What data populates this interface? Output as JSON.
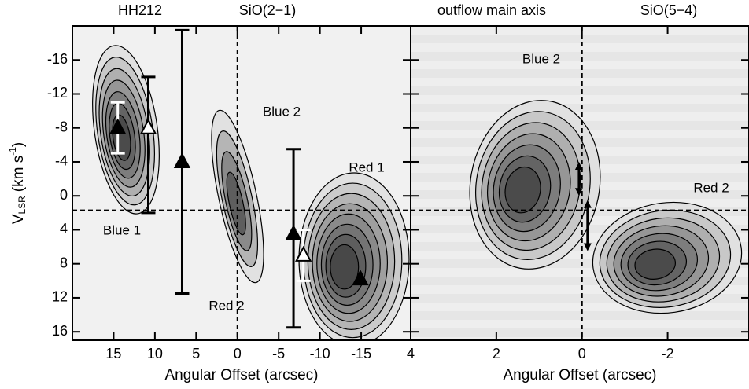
{
  "chart_data": [
    {
      "type": "pv-contour",
      "labels": [
        "HH212",
        "SiO(2−1)"
      ],
      "xlabel": "Angular Offset (arcsec)",
      "ylabel": {
        "main": "V",
        "sub": "LSR",
        "unit": "(km s",
        "sup": "-1",
        "end": ")"
      },
      "xlim": [
        20,
        -21
      ],
      "ylim": [
        -20,
        17
      ],
      "xticks": [
        15,
        10,
        5,
        0,
        -5,
        -10,
        -15
      ],
      "yticks": [
        -16,
        -12,
        -8,
        -4,
        0,
        4,
        8,
        12,
        16
      ],
      "show_ytick_labels": true,
      "vline": 0,
      "hline": 1.7,
      "annotations": [
        "Blue 1",
        "Blue 2",
        "Red 1",
        "Red 2"
      ],
      "markers": [
        {
          "x": 14.5,
          "y": -8,
          "fill": "black",
          "bar": [
            -11,
            -5
          ],
          "bar_color": "white"
        },
        {
          "x": 10.8,
          "y": -8,
          "fill": "white",
          "bar": [
            -14,
            2
          ],
          "bar_color": "black"
        },
        {
          "x": 6.7,
          "y": -4,
          "fill": "black",
          "bar": [
            -19.5,
            11.5
          ],
          "bar_color": "black"
        },
        {
          "x": -6.8,
          "y": 4.5,
          "fill": "black",
          "bar": [
            -5.5,
            15.5
          ],
          "bar_color": "black"
        },
        {
          "x": -8,
          "y": 7,
          "fill": "white",
          "bar": [
            4,
            10
          ],
          "bar_color": "white"
        },
        {
          "x": -14.9,
          "y": 9.8,
          "fill": "black",
          "bar": null,
          "bar_color": null
        }
      ]
    },
    {
      "type": "pv-contour",
      "labels": [
        "outflow main axis",
        "SiO(5−4)"
      ],
      "xlabel": "Angular Offset (arcsec)",
      "xlim": [
        4,
        -3.9
      ],
      "ylim": [
        -20,
        17
      ],
      "xticks": [
        4,
        2,
        0,
        -2
      ],
      "yticks": [
        -16,
        -12,
        -8,
        -4,
        0,
        4,
        8,
        12,
        16
      ],
      "show_ytick_labels": false,
      "vline": 0,
      "hline": 1.7,
      "annotations": [
        "Blue 2",
        "Red 2"
      ],
      "arrows": [
        {
          "x": 0.07,
          "ylow": -4,
          "yhigh": 0
        },
        {
          "x": -0.13,
          "ylow": 0.5,
          "yhigh": 6.5
        }
      ]
    }
  ]
}
